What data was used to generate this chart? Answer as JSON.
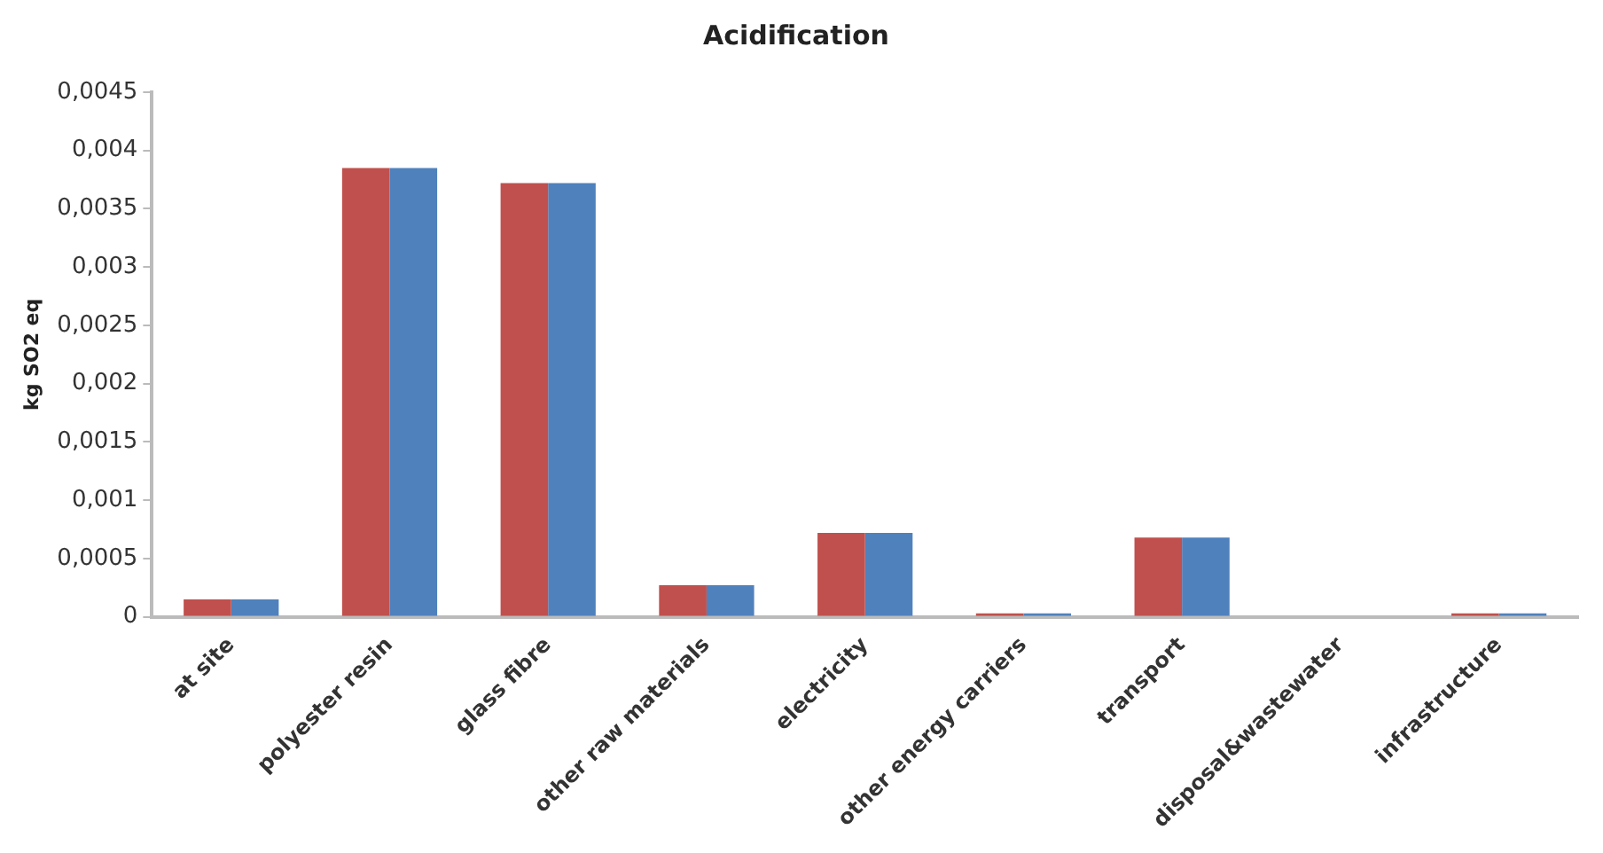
{
  "chart_data": {
    "type": "bar",
    "title": "Acidification",
    "ylabel": "kg SO2 eq",
    "categories": [
      "at site",
      "polyester resin",
      "glass fibre",
      "other raw materials",
      "electricity",
      "other energy carriers",
      "transport",
      "disposal&wastewater",
      "infrastructure"
    ],
    "series": [
      {
        "color": "#c0504d",
        "values": [
          0.00015,
          0.00385,
          0.00372,
          0.00027,
          0.00072,
          3e-05,
          0.00068,
          0,
          3e-05
        ]
      },
      {
        "color": "#4f81bd",
        "values": [
          0.00015,
          0.00385,
          0.00372,
          0.00027,
          0.00072,
          3e-05,
          0.00068,
          0,
          3e-05
        ]
      }
    ],
    "ylim": [
      0,
      0.0045
    ],
    "yticks": [
      0,
      {
        "value": 0.0005,
        "label": "0,0005"
      },
      {
        "value": 0.001,
        "label": "0,001"
      },
      {
        "value": 0.0015,
        "label": "0,0015"
      },
      {
        "value": 0.002,
        "label": "0,002"
      },
      {
        "value": 0.0025,
        "label": "0,0025"
      },
      {
        "value": 0.003,
        "label": "0,003"
      },
      {
        "value": 0.0035,
        "label": "0,0035"
      },
      {
        "value": 0.004,
        "label": "0,004"
      },
      {
        "value": 0.0045,
        "label": "0,0045"
      }
    ],
    "grid": false,
    "legend": false
  }
}
